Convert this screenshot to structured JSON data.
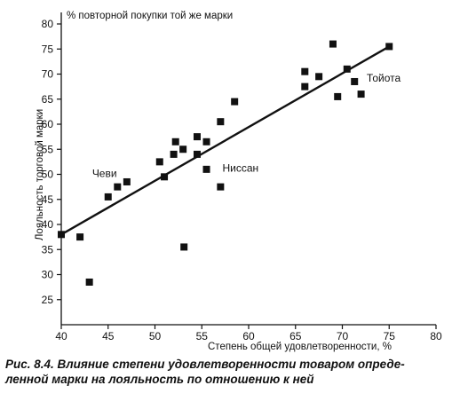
{
  "chart_data": {
    "type": "scatter",
    "xlabel": "Степень общей удовлетворенности, %",
    "ylabel": "Лояльность торговой марки",
    "y_axis_top_label": "% повторной покупки той же марки",
    "xlim": [
      40,
      80
    ],
    "ylim": [
      20,
      80
    ],
    "x_ticks": [
      40,
      45,
      50,
      55,
      60,
      65,
      70,
      75,
      80
    ],
    "y_ticks": [
      25,
      30,
      35,
      40,
      45,
      50,
      55,
      60,
      65,
      70,
      75,
      80
    ],
    "grid": false,
    "points": [
      {
        "x": 40,
        "y": 38
      },
      {
        "x": 42,
        "y": 37.5
      },
      {
        "x": 43,
        "y": 28.5
      },
      {
        "x": 45,
        "y": 45.5
      },
      {
        "x": 46,
        "y": 47.5
      },
      {
        "x": 47,
        "y": 48.5
      },
      {
        "x": 50.5,
        "y": 52.5
      },
      {
        "x": 51,
        "y": 49.5
      },
      {
        "x": 52,
        "y": 54
      },
      {
        "x": 52.2,
        "y": 56.5
      },
      {
        "x": 53,
        "y": 55
      },
      {
        "x": 53.1,
        "y": 35.5
      },
      {
        "x": 54.5,
        "y": 57.5
      },
      {
        "x": 54.5,
        "y": 54
      },
      {
        "x": 55.5,
        "y": 56.5
      },
      {
        "x": 55.5,
        "y": 51
      },
      {
        "x": 57,
        "y": 47.5
      },
      {
        "x": 57,
        "y": 60.5
      },
      {
        "x": 58.5,
        "y": 64.5
      },
      {
        "x": 66,
        "y": 70.5
      },
      {
        "x": 66,
        "y": 67.5
      },
      {
        "x": 67.5,
        "y": 69.5
      },
      {
        "x": 69,
        "y": 76
      },
      {
        "x": 69.5,
        "y": 65.5
      },
      {
        "x": 70.5,
        "y": 71
      },
      {
        "x": 71.3,
        "y": 68.5
      },
      {
        "x": 72,
        "y": 66
      },
      {
        "x": 75,
        "y": 75.5
      }
    ],
    "trend_line": {
      "x": [
        40,
        75
      ],
      "y": [
        38,
        75.5
      ]
    },
    "annotations": [
      {
        "text": "Чеви",
        "x": 43.3,
        "y": 49.5
      },
      {
        "text": "Ниссан",
        "x": 57.2,
        "y": 50.5
      },
      {
        "text": "Тойота",
        "x": 72.6,
        "y": 68.5
      }
    ]
  },
  "caption": {
    "line1": "Рис. 8.4. Влияние степени удовлетворенности товаром опреде-",
    "line2": "ленной марки на лояльность по отношению к ней"
  }
}
